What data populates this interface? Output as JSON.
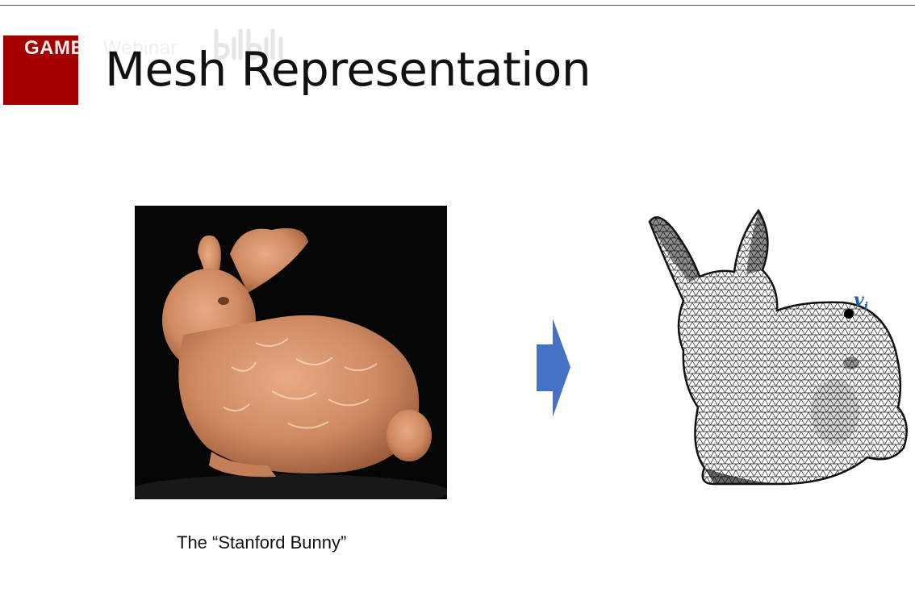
{
  "slide": {
    "title": "Mesh Representation",
    "caption": "The “Stanford Bunny”",
    "vertex_label": {
      "main": "v",
      "sub": "i"
    }
  },
  "watermark": {
    "brand": "GAMES",
    "suffix": " Webinar"
  },
  "colors": {
    "accent_red": "#a50000",
    "arrow_blue": "#4472c4",
    "vertex_label_blue": "#1f5fa6",
    "bunny_clay": "#d08a62"
  },
  "icons": {
    "arrow": "right-arrow-icon",
    "logo": "bilibili-logo-icon"
  }
}
